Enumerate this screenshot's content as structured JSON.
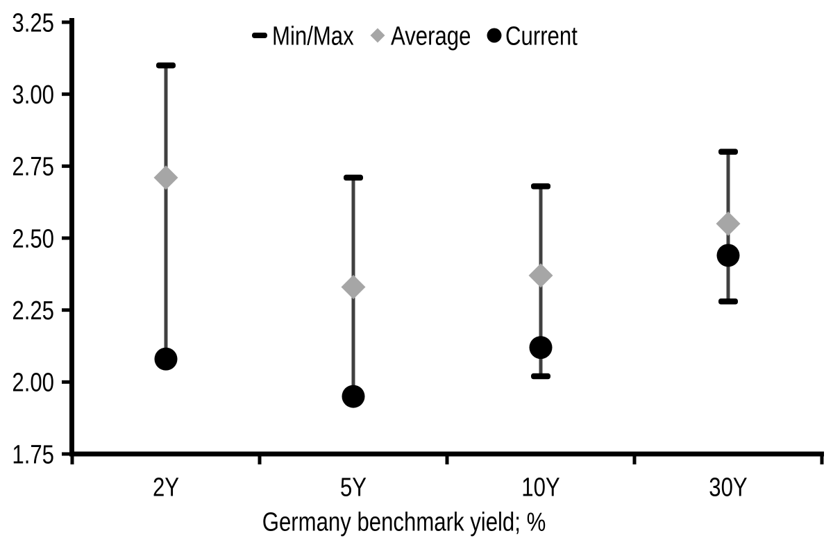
{
  "chart_data": {
    "type": "scatter",
    "subtype": "min-max-range",
    "title": "",
    "xlabel": "Germany benchmark yield; %",
    "ylabel": "",
    "categories": [
      "2Y",
      "5Y",
      "10Y",
      "30Y"
    ],
    "series": [
      {
        "name": "Min",
        "values": [
          2.08,
          1.95,
          2.02,
          2.28
        ]
      },
      {
        "name": "Max",
        "values": [
          3.1,
          2.71,
          2.68,
          2.8
        ]
      },
      {
        "name": "Average",
        "values": [
          2.71,
          2.33,
          2.37,
          2.55
        ]
      },
      {
        "name": "Current",
        "values": [
          2.08,
          1.95,
          2.12,
          2.44
        ]
      }
    ],
    "ylim": [
      1.75,
      3.25
    ],
    "ytick_step": 0.25,
    "ytick_labels": [
      "1.75",
      "2.00",
      "2.25",
      "2.50",
      "2.75",
      "3.00",
      "3.25"
    ],
    "grid": false,
    "legend_position": "top-center",
    "legend": [
      {
        "label": "Min/Max",
        "marker": "dash",
        "color": "#000000"
      },
      {
        "label": "Average",
        "marker": "diamond",
        "color": "#A6A6A6"
      },
      {
        "label": "Current",
        "marker": "circle",
        "color": "#000000"
      }
    ],
    "colors": {
      "range_line": "#404040",
      "cap": "#000000",
      "average": "#A6A6A6",
      "current": "#000000",
      "axis": "#000000",
      "text": "#000000",
      "background": "#FFFFFF"
    }
  }
}
